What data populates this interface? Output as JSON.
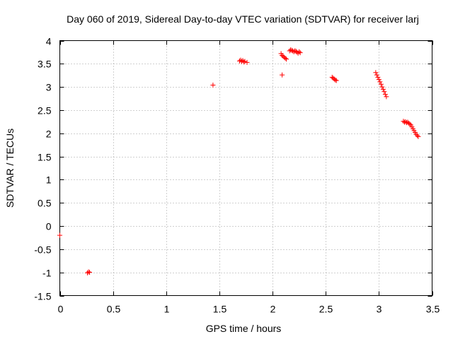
{
  "chart_data": {
    "type": "scatter",
    "title": "Day 060 of 2019, Sidereal Day-to-day VTEC variation (SDTVAR) for receiver larj",
    "xlabel": "GPS time / hours",
    "ylabel": "SDTVAR / TECUs",
    "xlim": [
      0,
      3.5
    ],
    "ylim": [
      -1.5,
      4
    ],
    "xticks": [
      0,
      0.5,
      1,
      1.5,
      2,
      2.5,
      3,
      3.5
    ],
    "yticks": [
      -1.5,
      -1,
      -0.5,
      0,
      0.5,
      1,
      1.5,
      2,
      2.5,
      3,
      3.5,
      4
    ],
    "xtick_labels": [
      "0",
      "0.5",
      "1",
      "1.5",
      "2",
      "2.5",
      "3",
      "3.5"
    ],
    "ytick_labels": [
      "-1.5",
      "-1",
      "-0.5",
      "0",
      "0.5",
      "1",
      "1.5",
      "2",
      "2.5",
      "3",
      "3.5",
      "4"
    ],
    "grid": true,
    "marker": "plus",
    "color": "#ff0000",
    "points": [
      [
        0.0,
        -0.2
      ],
      [
        0.26,
        -1.01
      ],
      [
        0.27,
        -0.99
      ],
      [
        0.28,
        -1.0
      ],
      [
        1.44,
        3.04
      ],
      [
        1.69,
        3.56
      ],
      [
        1.7,
        3.58
      ],
      [
        1.71,
        3.55
      ],
      [
        1.72,
        3.57
      ],
      [
        1.73,
        3.54
      ],
      [
        1.74,
        3.55
      ],
      [
        1.76,
        3.53
      ],
      [
        2.08,
        3.72
      ],
      [
        2.09,
        3.68
      ],
      [
        2.1,
        3.66
      ],
      [
        2.11,
        3.64
      ],
      [
        2.12,
        3.62
      ],
      [
        2.13,
        3.6
      ],
      [
        2.09,
        3.26
      ],
      [
        2.16,
        3.78
      ],
      [
        2.17,
        3.8
      ],
      [
        2.18,
        3.79
      ],
      [
        2.19,
        3.78
      ],
      [
        2.2,
        3.76
      ],
      [
        2.21,
        3.78
      ],
      [
        2.22,
        3.77
      ],
      [
        2.23,
        3.75
      ],
      [
        2.24,
        3.73
      ],
      [
        2.25,
        3.76
      ],
      [
        2.26,
        3.74
      ],
      [
        2.56,
        3.21
      ],
      [
        2.57,
        3.19
      ],
      [
        2.58,
        3.17
      ],
      [
        2.59,
        3.15
      ],
      [
        2.6,
        3.14
      ],
      [
        2.97,
        3.31
      ],
      [
        2.98,
        3.26
      ],
      [
        2.99,
        3.21
      ],
      [
        3.0,
        3.16
      ],
      [
        3.01,
        3.11
      ],
      [
        3.02,
        3.06
      ],
      [
        3.03,
        3.0
      ],
      [
        3.04,
        2.95
      ],
      [
        3.05,
        2.9
      ],
      [
        3.06,
        2.84
      ],
      [
        3.07,
        2.79
      ],
      [
        3.23,
        2.26
      ],
      [
        3.24,
        2.24
      ],
      [
        3.25,
        2.25
      ],
      [
        3.26,
        2.23
      ],
      [
        3.27,
        2.24
      ],
      [
        3.28,
        2.22
      ],
      [
        3.29,
        2.2
      ],
      [
        3.3,
        2.18
      ],
      [
        3.31,
        2.14
      ],
      [
        3.32,
        2.1
      ],
      [
        3.33,
        2.06
      ],
      [
        3.34,
        2.02
      ],
      [
        3.35,
        1.98
      ],
      [
        3.36,
        1.95
      ],
      [
        3.37,
        1.93
      ]
    ]
  }
}
